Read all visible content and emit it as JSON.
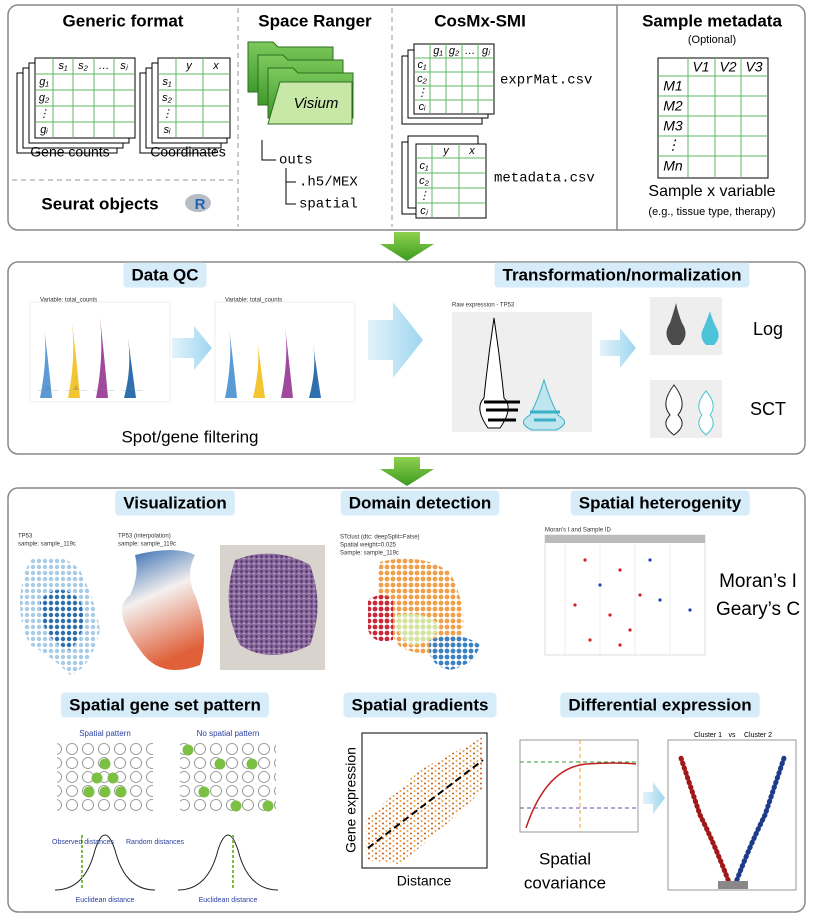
{
  "input": {
    "generic": {
      "title": "Generic format",
      "gene_table": {
        "cols": [
          "s₁",
          "s₂",
          "…",
          "sⱼ"
        ],
        "rows": [
          "g₁",
          "g₂",
          "⋮",
          "gᵢ"
        ]
      },
      "gene_label": "Gene counts",
      "coord_table": {
        "cols": [
          "y",
          "x"
        ],
        "rows": [
          "s₁",
          "s₂",
          "⋮",
          "sᵢ"
        ]
      },
      "coord_label": "Coordinates",
      "seurat": "Seurat objects",
      "r_logo": "R"
    },
    "spaceranger": {
      "title": "Space Ranger",
      "folder": "Visium",
      "tree": [
        "outs",
        ".h5/MEX",
        "spatial"
      ]
    },
    "cosmx": {
      "title": "CosMx-SMI",
      "expr_table": {
        "cols": [
          "g₁",
          "g₂",
          "…",
          "gⱼ"
        ],
        "rows": [
          "c₁",
          "c₂",
          "⋮",
          "cᵢ"
        ]
      },
      "expr_file": "exprMat.csv",
      "meta_table": {
        "cols": [
          "y",
          "x"
        ],
        "rows": [
          "c₁",
          "c₂",
          "⋮",
          "cⱼ"
        ]
      },
      "meta_file": "metadata.csv"
    },
    "sample_metadata": {
      "title": "Sample metadata",
      "note": "(Optional)",
      "cols": [
        "V1",
        "V2",
        "V3"
      ],
      "rows": [
        "M1",
        "M2",
        "M3",
        "⋮",
        "Mn"
      ],
      "label": "Sample x variable",
      "examples": "(e.g., tissue type, therapy)"
    }
  },
  "preprocessing": {
    "qc": {
      "title": "Data QC",
      "plot_titles": [
        "Variable: total_counts",
        "Variable: total_counts"
      ],
      "label": "Spot/gene filtering"
    },
    "transform": {
      "title": "Transformation/normalization",
      "plot_title": "Raw expression - TP53",
      "methods": [
        "Log",
        "SCT"
      ]
    }
  },
  "analysis": {
    "visualization": {
      "title": "Visualization",
      "plot1": [
        "TP53",
        "sample: sample_119c"
      ],
      "plot2": [
        "TP53 (interpolation)",
        "sample: sample_119c"
      ]
    },
    "domain": {
      "title": "Domain detection",
      "plot": [
        "STclust (dtc: deepSplit=False)",
        "Spatial weight=0.025",
        "Sample: sample_119c"
      ]
    },
    "heterogeneity": {
      "title": "Spatial heterogenity",
      "plot_title": "Moran's I and Sample ID",
      "stats": [
        "Moran’s I",
        "Geary’s C"
      ]
    },
    "gene_set": {
      "title": "Spatial gene set pattern",
      "panels": [
        "Spatial pattern",
        "No spatial pattern"
      ],
      "observed": "Observed distances",
      "random": "Random distances",
      "x_label": "Euclidean distance"
    },
    "gradients": {
      "title": "Spatial gradients",
      "y_label": "Gene expression",
      "x_label": "Distance"
    },
    "differential": {
      "title": "Differential expression",
      "covariance_label": [
        "Spatial",
        "covariance"
      ],
      "clusters": [
        "Cluster 1",
        "vs",
        "Cluster 2"
      ]
    }
  }
}
